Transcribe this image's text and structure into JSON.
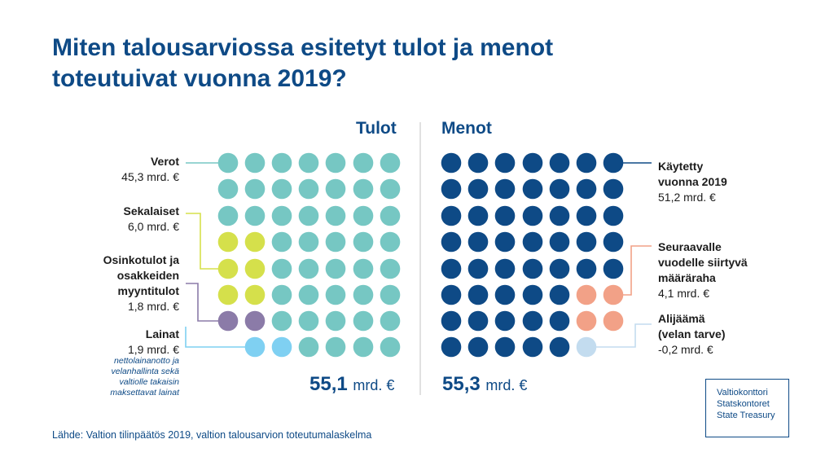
{
  "title": "Miten talousarviossa esitetyt tulot ja menot toteutuivat vuonna 2019?",
  "colors": {
    "verot": "#76c7c3",
    "sekalaiset": "#d5e04b",
    "osinko": "#8b7ba8",
    "lainat": "#7fd0f2",
    "kaytetty": "#0e4a86",
    "seuraava": "#f2a187",
    "alijaama": "#c3dcef",
    "heading": "#0e4a86",
    "separator": "#d7d7d7"
  },
  "chart_data": {
    "type": "waffle",
    "unit": "mrd. €",
    "grid": "7x8",
    "panels": [
      {
        "heading": "Tulot",
        "total_value": "55,1",
        "total_unit": "mrd. €",
        "categories": [
          {
            "name": "Verot",
            "value": 45.3,
            "value_label": "45,3 mrd. €",
            "dots": 45
          },
          {
            "name": "Sekalaiset",
            "value": 6.0,
            "value_label": "6,0 mrd. €",
            "dots": 6
          },
          {
            "name": "Osinkotulot ja osakkeiden myyntitulot",
            "value": 1.8,
            "value_label": "1,8 mrd. €",
            "dots": 2
          },
          {
            "name": "Lainat",
            "value": 1.9,
            "value_label": "1,9 mrd. €",
            "dots": 2,
            "note": "nettolainanotto ja velanhallinta sekä valtiolle takaisin maksettavat lainat"
          }
        ]
      },
      {
        "heading": "Menot",
        "total_value": "55,3",
        "total_unit": "mrd. €",
        "categories": [
          {
            "name": "Käytetty vuonna 2019",
            "value": 51.2,
            "value_label": "51,2 mrd. €",
            "dots": 51
          },
          {
            "name": "Seuraavalle vuodelle siirtyvä määräraha",
            "value": 4.1,
            "value_label": "4,1 mrd. €",
            "dots": 4
          },
          {
            "name": "Alijäämä (velan tarve)",
            "value": -0.2,
            "value_label": "-0,2 mrd. €",
            "dots": 1
          }
        ]
      }
    ]
  },
  "labels": {
    "verot": {
      "name": "Verot",
      "value": "45,3 mrd. €"
    },
    "sekalaiset": {
      "name": "Sekalaiset",
      "value": "6,0 mrd. €"
    },
    "osinko": {
      "name_lines": [
        "Osinkotulot ja",
        "osakkeiden",
        "myyntitulot"
      ],
      "value": "1,8 mrd. €"
    },
    "lainat": {
      "name": "Lainat",
      "value": "1,9 mrd. €",
      "note_lines": [
        "nettolainanotto ja",
        "velanhallinta sekä",
        "valtiolle takaisin",
        "maksettavat lainat"
      ]
    },
    "kaytetty": {
      "name_lines": [
        "Käytetty",
        "vuonna 2019"
      ],
      "value": "51,2 mrd. €"
    },
    "seuraava": {
      "name_lines": [
        "Seuraavalle",
        "vuodelle siirtyvä",
        "määräraha"
      ],
      "value": "4,1 mrd. €"
    },
    "alijaama": {
      "name_lines": [
        "Alijäämä",
        "(velan tarve)"
      ],
      "value": "-0,2 mrd. €"
    }
  },
  "source": "Lähde: Valtion tilinpäätös 2019, valtion talousarvion toteutumalaskelma",
  "logo_lines": [
    "Valtiokonttori",
    "Statskontoret",
    "State Treasury"
  ]
}
